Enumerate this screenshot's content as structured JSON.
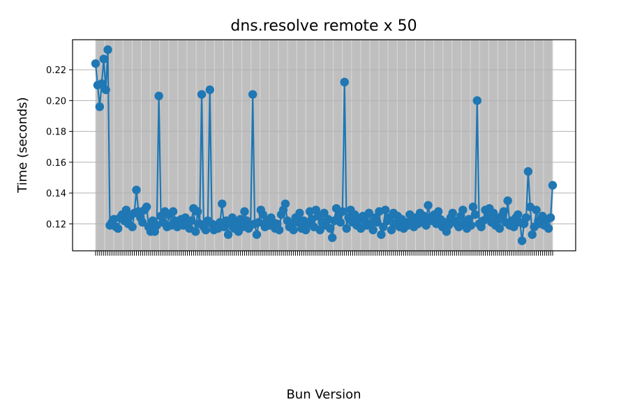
{
  "chart_data": {
    "type": "line",
    "title": "dns.resolve remote x 50",
    "xlabel": "Bun Version",
    "ylabel": "Time (seconds)",
    "ylim": [
      0.1025,
      0.2395
    ],
    "yticks": [
      0.12,
      0.14,
      0.16,
      0.18,
      0.2,
      0.22
    ],
    "grid": true,
    "marker": "circle",
    "colors": {
      "line": "#1f77b4",
      "band": "#bfbfbf",
      "grid": "#b0b0b0"
    },
    "series": [
      {
        "values": [
          0.224,
          0.21,
          0.196,
          0.211,
          0.227,
          0.207,
          0.233,
          0.119,
          0.121,
          0.123,
          0.118,
          0.117,
          0.124,
          0.126,
          0.122,
          0.129,
          0.12,
          0.125,
          0.118,
          0.127,
          0.142,
          0.128,
          0.124,
          0.121,
          0.129,
          0.131,
          0.118,
          0.115,
          0.122,
          0.115,
          0.119,
          0.203,
          0.125,
          0.121,
          0.128,
          0.118,
          0.126,
          0.119,
          0.128,
          0.122,
          0.118,
          0.121,
          0.123,
          0.119,
          0.124,
          0.12,
          0.117,
          0.122,
          0.13,
          0.115,
          0.128,
          0.12,
          0.204,
          0.118,
          0.116,
          0.122,
          0.207,
          0.12,
          0.116,
          0.119,
          0.117,
          0.121,
          0.133,
          0.118,
          0.122,
          0.113,
          0.12,
          0.124,
          0.117,
          0.121,
          0.115,
          0.123,
          0.118,
          0.128,
          0.122,
          0.117,
          0.119,
          0.204,
          0.12,
          0.113,
          0.121,
          0.129,
          0.126,
          0.118,
          0.122,
          0.119,
          0.124,
          0.121,
          0.117,
          0.12,
          0.116,
          0.126,
          0.129,
          0.133,
          0.122,
          0.118,
          0.12,
          0.116,
          0.124,
          0.121,
          0.127,
          0.117,
          0.122,
          0.116,
          0.12,
          0.128,
          0.123,
          0.118,
          0.129,
          0.125,
          0.116,
          0.121,
          0.127,
          0.119,
          0.123,
          0.117,
          0.111,
          0.122,
          0.13,
          0.125,
          0.121,
          0.128,
          0.212,
          0.117,
          0.124,
          0.129,
          0.121,
          0.126,
          0.119,
          0.123,
          0.117,
          0.125,
          0.122,
          0.119,
          0.127,
          0.12,
          0.116,
          0.124,
          0.121,
          0.128,
          0.113,
          0.118,
          0.129,
          0.122,
          0.124,
          0.116,
          0.127,
          0.12,
          0.125,
          0.118,
          0.123,
          0.117,
          0.121,
          0.119,
          0.126,
          0.122,
          0.118,
          0.124,
          0.12,
          0.127,
          0.121,
          0.125,
          0.119,
          0.132,
          0.124,
          0.122,
          0.126,
          0.12,
          0.128,
          0.123,
          0.118,
          0.121,
          0.115,
          0.119,
          0.124,
          0.127,
          0.122,
          0.12,
          0.118,
          0.125,
          0.129,
          0.121,
          0.117,
          0.123,
          0.119,
          0.131,
          0.126,
          0.2,
          0.12,
          0.118,
          0.122,
          0.129,
          0.124,
          0.13,
          0.121,
          0.127,
          0.119,
          0.123,
          0.117,
          0.125,
          0.128,
          0.121,
          0.135,
          0.119,
          0.122,
          0.118,
          0.124,
          0.126,
          0.121,
          0.109,
          0.12,
          0.124,
          0.154,
          0.131,
          0.113,
          0.118,
          0.129,
          0.122,
          0.12,
          0.125,
          0.119,
          0.123,
          0.117,
          0.124,
          0.145
        ]
      }
    ]
  }
}
